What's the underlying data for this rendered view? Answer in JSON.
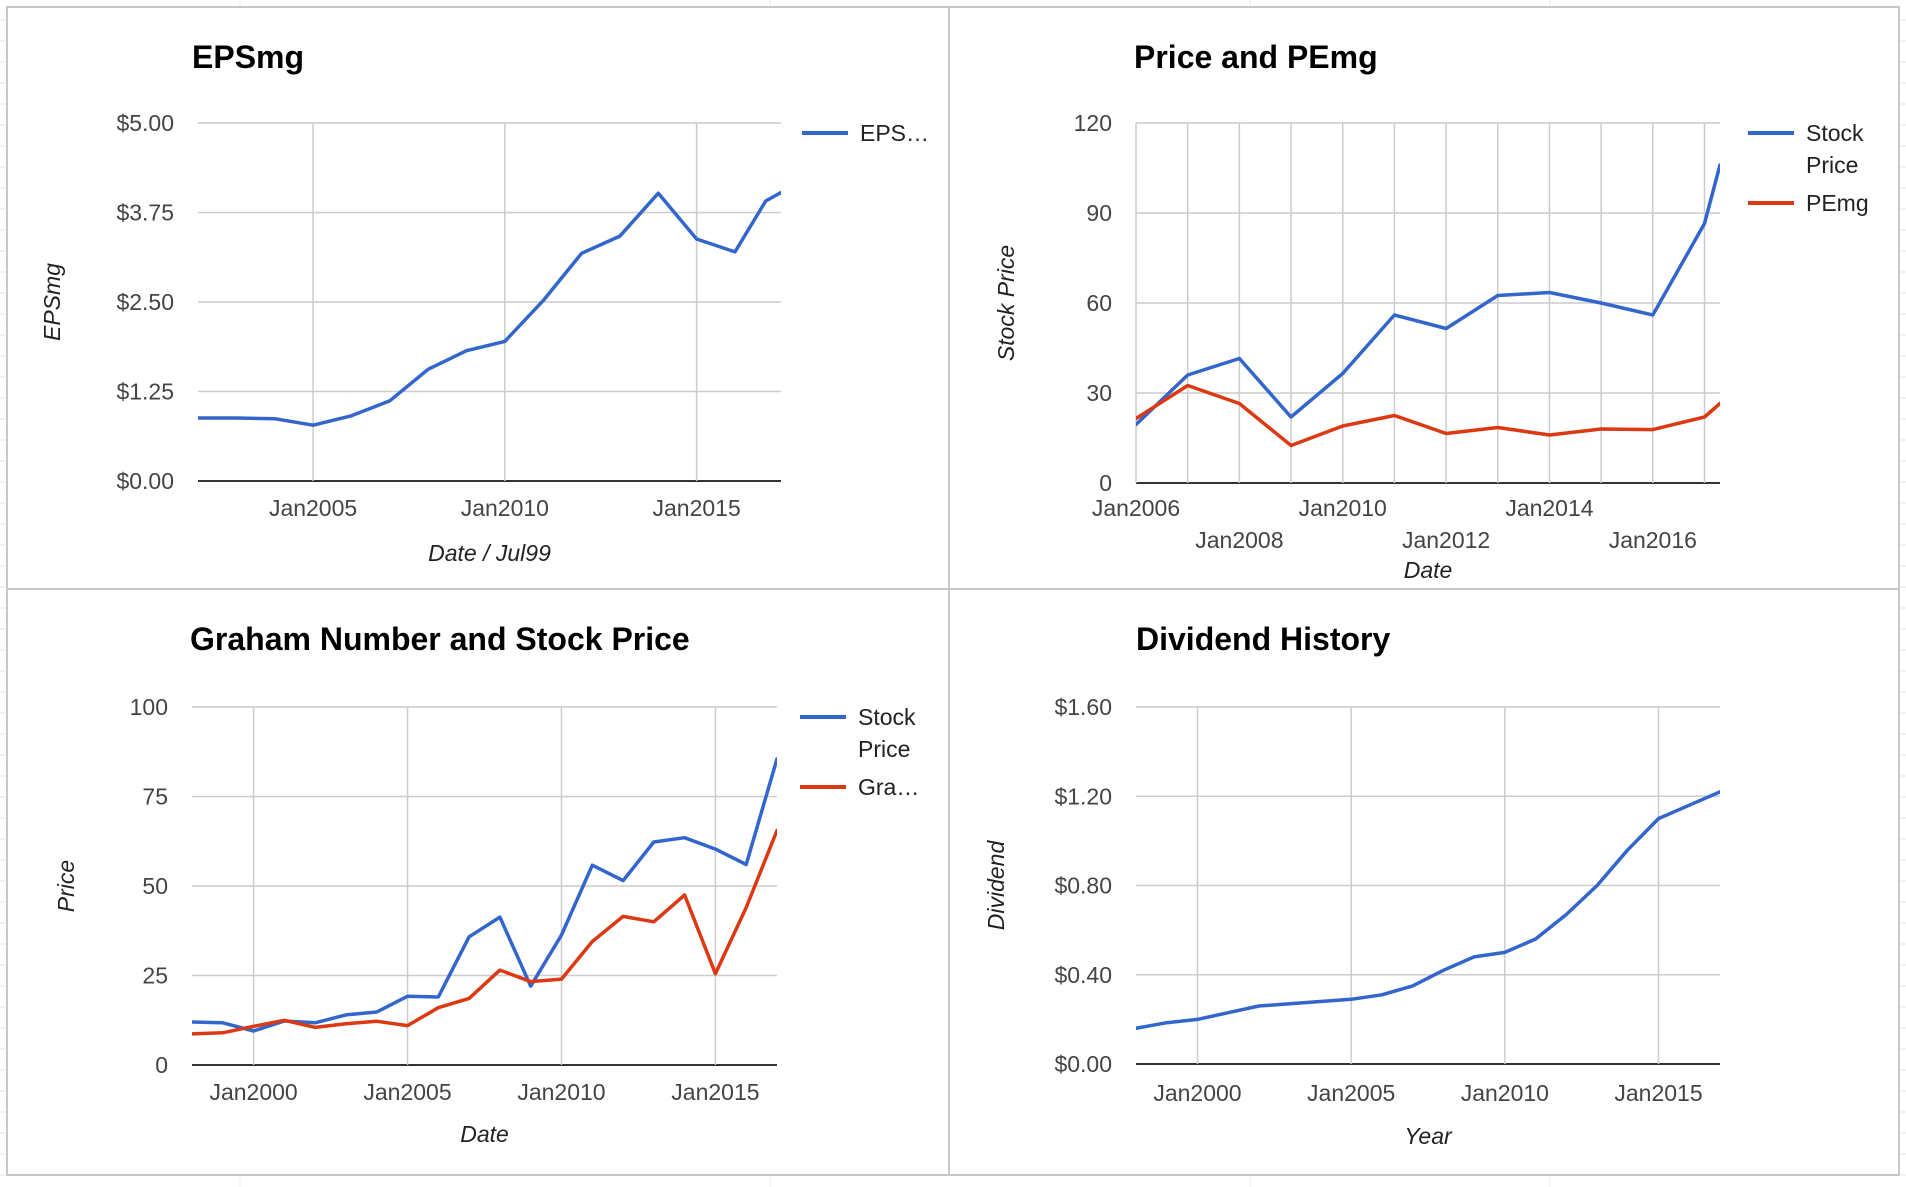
{
  "colors": {
    "blue": "#3366cc",
    "red": "#dc3912",
    "grid": "#cccccc",
    "axis": "#333333"
  },
  "chart_data": [
    {
      "id": "eps",
      "type": "line",
      "title": "EPSmg",
      "xlabel": "Date / Jul99",
      "ylabel": "EPSmg",
      "xlim": [
        2002.0,
        2017.2
      ],
      "ylim": [
        0,
        5
      ],
      "yticks": [
        0,
        1.25,
        2.5,
        3.75,
        5
      ],
      "ytick_labels": [
        "$0.00",
        "$1.25",
        "$2.50",
        "$3.75",
        "$5.00"
      ],
      "xticks": [
        2005,
        2010,
        2015
      ],
      "xtick_labels": [
        "Jan2005",
        "Jan2010",
        "Jan2015"
      ],
      "grid": true,
      "legend_position": "right",
      "series": [
        {
          "name": "EPS…",
          "color": "#3366cc",
          "x": [
            2002.0,
            2003.0,
            2004.0,
            2005.0,
            2006.0,
            2007.0,
            2008.0,
            2009.0,
            2010.0,
            2011.0,
            2012.0,
            2013.0,
            2014.0,
            2015.0,
            2016.0,
            2016.8,
            2017.2
          ],
          "y": [
            0.88,
            0.88,
            0.87,
            0.78,
            0.91,
            1.12,
            1.56,
            1.82,
            1.95,
            2.52,
            3.18,
            3.42,
            4.02,
            3.38,
            3.2,
            3.91,
            4.03
          ]
        }
      ]
    },
    {
      "id": "price_pe",
      "type": "line",
      "title": "Price and PEmg",
      "xlabel": "Date",
      "ylabel": "Stock Price",
      "xlim": [
        2006.0,
        2017.3
      ],
      "ylim": [
        0,
        120
      ],
      "yticks": [
        0,
        30,
        60,
        90,
        120
      ],
      "ytick_labels": [
        "0",
        "30",
        "60",
        "90",
        "120"
      ],
      "xticks": [
        2006,
        2008,
        2010,
        2012,
        2014,
        2016
      ],
      "xtick_labels": [
        "Jan2006",
        "Jan2008",
        "Jan2010",
        "Jan2012",
        "Jan2014",
        "Jan2016"
      ],
      "grid": true,
      "legend_position": "right",
      "series": [
        {
          "name": "Stock Price",
          "color": "#3366cc",
          "x": [
            2006.0,
            2007.0,
            2008.0,
            2009.0,
            2010.0,
            2011.0,
            2012.0,
            2013.0,
            2014.0,
            2015.0,
            2016.0,
            2017.0,
            2017.3
          ],
          "y": [
            19.5,
            36,
            41.5,
            22,
            36.5,
            56,
            51.5,
            62.5,
            63.5,
            60,
            56,
            86.5,
            106
          ]
        },
        {
          "name": "PEmg",
          "color": "#dc3912",
          "x": [
            2006.0,
            2007.0,
            2008.0,
            2009.0,
            2010.0,
            2011.0,
            2012.0,
            2013.0,
            2014.0,
            2015.0,
            2016.0,
            2017.0,
            2017.3
          ],
          "y": [
            21.5,
            32.5,
            26.5,
            12.5,
            19,
            22.5,
            16.5,
            18.5,
            16,
            18,
            17.8,
            22,
            26.5
          ]
        }
      ]
    },
    {
      "id": "graham",
      "type": "line",
      "title": "Graham Number and Stock Price",
      "xlabel": "Date",
      "ylabel": "Price",
      "xlim": [
        1998.0,
        2017.0
      ],
      "ylim": [
        0,
        100
      ],
      "yticks": [
        0,
        25,
        50,
        75,
        100
      ],
      "ytick_labels": [
        "0",
        "25",
        "50",
        "75",
        "100"
      ],
      "xticks": [
        2000,
        2005,
        2010,
        2015
      ],
      "xtick_labels": [
        "Jan2000",
        "Jan2005",
        "Jan2010",
        "Jan2015"
      ],
      "grid": true,
      "legend_position": "right",
      "series": [
        {
          "name": "Stock Price",
          "color": "#3366cc",
          "x": [
            1998.0,
            1999.0,
            2000.0,
            2001.0,
            2002.0,
            2003.0,
            2004.0,
            2005.0,
            2006.0,
            2007.0,
            2008.0,
            2009.0,
            2010.0,
            2011.0,
            2012.0,
            2013.0,
            2014.0,
            2015.0,
            2016.0,
            2017.0
          ],
          "y": [
            12,
            11.8,
            9.5,
            12.3,
            11.8,
            14,
            14.8,
            19.2,
            19,
            35.8,
            41.3,
            22,
            36.3,
            55.8,
            51.5,
            62.3,
            63.5,
            60.3,
            56,
            85.5
          ]
        },
        {
          "name": "Gra…",
          "color": "#dc3912",
          "x": [
            1998.0,
            1999.0,
            2000.0,
            2001.0,
            2002.0,
            2003.0,
            2004.0,
            2005.0,
            2006.0,
            2007.0,
            2008.0,
            2009.0,
            2010.0,
            2011.0,
            2012.0,
            2013.0,
            2014.0,
            2015.0,
            2016.0,
            2017.0
          ],
          "y": [
            8.7,
            9,
            10.8,
            12.5,
            10.5,
            11.5,
            12.2,
            11,
            16,
            18.6,
            26.5,
            23.3,
            24,
            34.5,
            41.5,
            40,
            47.5,
            25.5,
            44,
            65.5
          ]
        }
      ]
    },
    {
      "id": "dividend",
      "type": "line",
      "title": "Dividend History",
      "xlabel": "Year",
      "ylabel": "Dividend",
      "xlim": [
        1998.0,
        2017.0
      ],
      "ylim": [
        0,
        1.6
      ],
      "yticks": [
        0,
        0.4,
        0.8,
        1.2,
        1.6
      ],
      "ytick_labels": [
        "$0.00",
        "$0.40",
        "$0.80",
        "$1.20",
        "$1.60"
      ],
      "xticks": [
        2000,
        2005,
        2010,
        2015
      ],
      "xtick_labels": [
        "Jan2000",
        "Jan2005",
        "Jan2010",
        "Jan2015"
      ],
      "grid": true,
      "legend_position": "none",
      "series": [
        {
          "name": "",
          "color": "#3366cc",
          "x": [
            1998.0,
            1999.0,
            2000.0,
            2001.0,
            2002.0,
            2003.0,
            2004.0,
            2005.0,
            2006.0,
            2007.0,
            2008.0,
            2009.0,
            2010.0,
            2011.0,
            2012.0,
            2013.0,
            2014.0,
            2015.0,
            2016.0,
            2017.0
          ],
          "y": [
            0.16,
            0.185,
            0.2,
            0.23,
            0.26,
            0.27,
            0.28,
            0.29,
            0.31,
            0.35,
            0.42,
            0.48,
            0.5,
            0.56,
            0.67,
            0.8,
            0.96,
            1.1,
            1.16,
            1.22
          ]
        }
      ]
    }
  ]
}
